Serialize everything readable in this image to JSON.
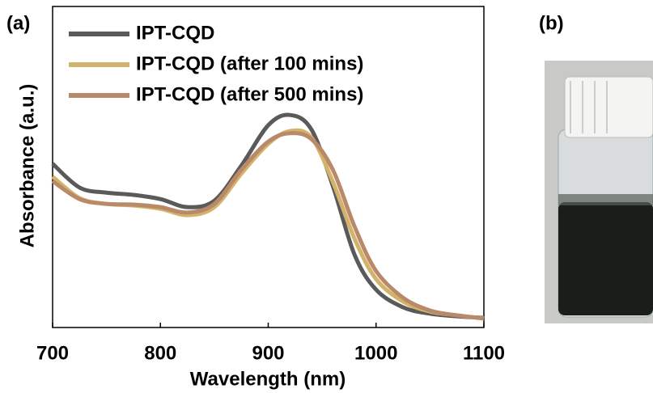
{
  "chart_data": {
    "type": "line",
    "panel_label": "(a)",
    "x_label": "Wavelength (nm)",
    "y_label": "Absorbance (a.u.)",
    "x": [
      700,
      725,
      750,
      775,
      800,
      825,
      850,
      875,
      900,
      920,
      940,
      960,
      980,
      1000,
      1025,
      1050,
      1075,
      1100
    ],
    "series": [
      {
        "name": "IPT-CQD",
        "color": "#5a5a5a",
        "values": [
          0.51,
          0.436,
          0.42,
          0.413,
          0.4,
          0.375,
          0.395,
          0.504,
          0.63,
          0.662,
          0.617,
          0.44,
          0.227,
          0.118,
          0.063,
          0.043,
          0.035,
          0.03
        ]
      },
      {
        "name": "IPT-CQD (after 100 mins)",
        "color": "#d4b26a",
        "values": [
          0.47,
          0.403,
          0.385,
          0.38,
          0.37,
          0.35,
          0.375,
          0.479,
          0.572,
          0.612,
          0.592,
          0.453,
          0.277,
          0.151,
          0.081,
          0.05,
          0.038,
          0.028
        ]
      },
      {
        "name": "IPT-CQD (after 500 mins)",
        "color": "#b88a6a",
        "values": [
          0.456,
          0.4,
          0.385,
          0.383,
          0.375,
          0.358,
          0.385,
          0.491,
          0.579,
          0.605,
          0.587,
          0.491,
          0.315,
          0.176,
          0.093,
          0.053,
          0.038,
          0.028
        ]
      }
    ],
    "xlim": [
      700,
      1100
    ],
    "xticks": [
      700,
      800,
      900,
      1000,
      1100
    ],
    "ylim": [
      0,
      1
    ],
    "legend": "upper left"
  },
  "photo": {
    "panel_label": "(b)"
  }
}
